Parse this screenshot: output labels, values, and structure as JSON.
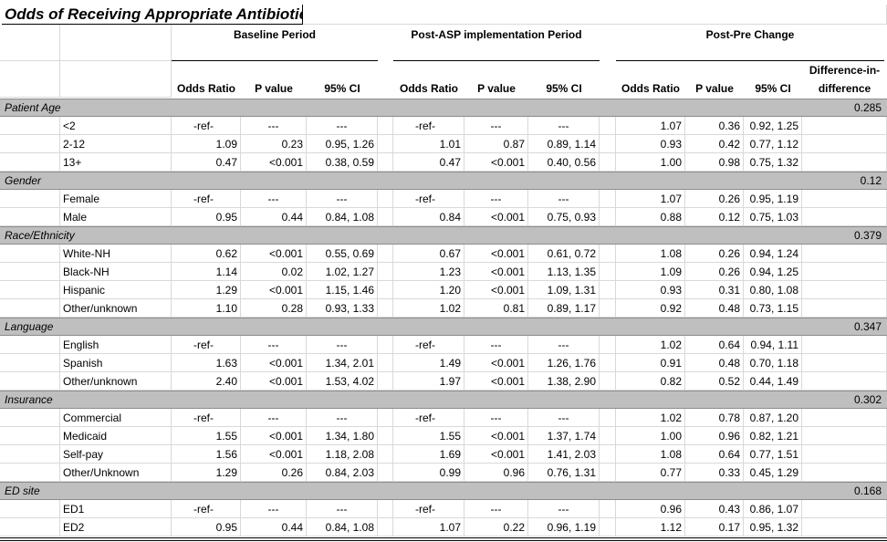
{
  "title": "Odds of Receiving Appropriate Antibiotic",
  "periods": [
    "Baseline Period",
    "Post-ASP implementation Period",
    "Post-Pre Change"
  ],
  "headers": {
    "or": "Odds Ratio",
    "p": "P value",
    "ci": "95% CI",
    "did_line1": "Difference-in-",
    "did_line2": "difference"
  },
  "sections": [
    {
      "label": "Patient Age",
      "did": "0.285",
      "rows": [
        {
          "label": "<2",
          "b": [
            "-ref-",
            "---",
            "---"
          ],
          "p": [
            "-ref-",
            "---",
            "---"
          ],
          "c": [
            "1.07",
            "0.36",
            "0.92, 1.25"
          ]
        },
        {
          "label": "2-12",
          "b": [
            "1.09",
            "0.23",
            "0.95, 1.26"
          ],
          "p": [
            "1.01",
            "0.87",
            "0.89, 1.14"
          ],
          "c": [
            "0.93",
            "0.42",
            "0.77, 1.12"
          ]
        },
        {
          "label": "13+",
          "b": [
            "0.47",
            "<0.001",
            "0.38, 0.59"
          ],
          "p": [
            "0.47",
            "<0.001",
            "0.40, 0.56"
          ],
          "c": [
            "1.00",
            "0.98",
            "0.75, 1.32"
          ]
        }
      ]
    },
    {
      "label": "Gender",
      "did": "0.12",
      "rows": [
        {
          "label": "Female",
          "b": [
            "-ref-",
            "---",
            "---"
          ],
          "p": [
            "-ref-",
            "---",
            "---"
          ],
          "c": [
            "1.07",
            "0.26",
            "0.95, 1.19"
          ]
        },
        {
          "label": "Male",
          "b": [
            "0.95",
            "0.44",
            "0.84, 1.08"
          ],
          "p": [
            "0.84",
            "<0.001",
            "0.75, 0.93"
          ],
          "c": [
            "0.88",
            "0.12",
            "0.75, 1.03"
          ]
        }
      ]
    },
    {
      "label": "Race/Ethnicity",
      "did": "0.379",
      "rows": [
        {
          "label": "White-NH",
          "b": [
            "0.62",
            "<0.001",
            "0.55, 0.69"
          ],
          "p": [
            "0.67",
            "<0.001",
            "0.61, 0.72"
          ],
          "c": [
            "1.08",
            "0.26",
            "0.94, 1.24"
          ]
        },
        {
          "label": "Black-NH",
          "b": [
            "1.14",
            "0.02",
            "1.02, 1.27"
          ],
          "p": [
            "1.23",
            "<0.001",
            "1.13, 1.35"
          ],
          "c": [
            "1.09",
            "0.26",
            "0.94, 1.25"
          ]
        },
        {
          "label": "Hispanic",
          "b": [
            "1.29",
            "<0.001",
            "1.15, 1.46"
          ],
          "p": [
            "1.20",
            "<0.001",
            "1.09, 1.31"
          ],
          "c": [
            "0.93",
            "0.31",
            "0.80, 1.08"
          ]
        },
        {
          "label": "Other/unknown",
          "b": [
            "1.10",
            "0.28",
            "0.93, 1.33"
          ],
          "p": [
            "1.02",
            "0.81",
            "0.89, 1.17"
          ],
          "c": [
            "0.92",
            "0.48",
            "0.73, 1.15"
          ]
        }
      ]
    },
    {
      "label": "Language",
      "did": "0.347",
      "rows": [
        {
          "label": "English",
          "b": [
            "-ref-",
            "---",
            "---"
          ],
          "p": [
            "-ref-",
            "---",
            "---"
          ],
          "c": [
            "1.02",
            "0.64",
            "0.94, 1.11"
          ]
        },
        {
          "label": "Spanish",
          "b": [
            "1.63",
            "<0.001",
            "1.34, 2.01"
          ],
          "p": [
            "1.49",
            "<0.001",
            "1.26, 1.76"
          ],
          "c": [
            "0.91",
            "0.48",
            "0.70, 1.18"
          ]
        },
        {
          "label": "Other/unknown",
          "b": [
            "2.40",
            "<0.001",
            "1.53, 4.02"
          ],
          "p": [
            "1.97",
            "<0.001",
            "1.38, 2.90"
          ],
          "c": [
            "0.82",
            "0.52",
            "0.44, 1.49"
          ]
        }
      ]
    },
    {
      "label": "Insurance",
      "did": "0.302",
      "rows": [
        {
          "label": "Commercial",
          "b": [
            "-ref-",
            "---",
            "---"
          ],
          "p": [
            "-ref-",
            "---",
            "---"
          ],
          "c": [
            "1.02",
            "0.78",
            "0.87, 1.20"
          ]
        },
        {
          "label": "Medicaid",
          "b": [
            "1.55",
            "<0.001",
            "1.34, 1.80"
          ],
          "p": [
            "1.55",
            "<0.001",
            "1.37, 1.74"
          ],
          "c": [
            "1.00",
            "0.96",
            "0.82, 1.21"
          ]
        },
        {
          "label": "Self-pay",
          "b": [
            "1.56",
            "<0.001",
            "1.18, 2.08"
          ],
          "p": [
            "1.69",
            "<0.001",
            "1.41, 2.03"
          ],
          "c": [
            "1.08",
            "0.64",
            "0.77, 1.51"
          ]
        },
        {
          "label": "Other/Unknown",
          "b": [
            "1.29",
            "0.26",
            "0.84, 2.03"
          ],
          "p": [
            "0.99",
            "0.96",
            "0.76, 1.31"
          ],
          "c": [
            "0.77",
            "0.33",
            "0.45, 1.29"
          ]
        }
      ]
    },
    {
      "label": "ED site",
      "did": "0.168",
      "rows": [
        {
          "label": "ED1",
          "b": [
            "-ref-",
            "---",
            "---"
          ],
          "p": [
            "-ref-",
            "---",
            "---"
          ],
          "c": [
            "0.96",
            "0.43",
            "0.86, 1.07"
          ]
        },
        {
          "label": "ED2",
          "b": [
            "0.95",
            "0.44",
            "0.84, 1.08"
          ],
          "p": [
            "1.07",
            "0.22",
            "0.96, 1.19"
          ],
          "c": [
            "1.12",
            "0.17",
            "0.95, 1.32"
          ]
        }
      ]
    }
  ]
}
